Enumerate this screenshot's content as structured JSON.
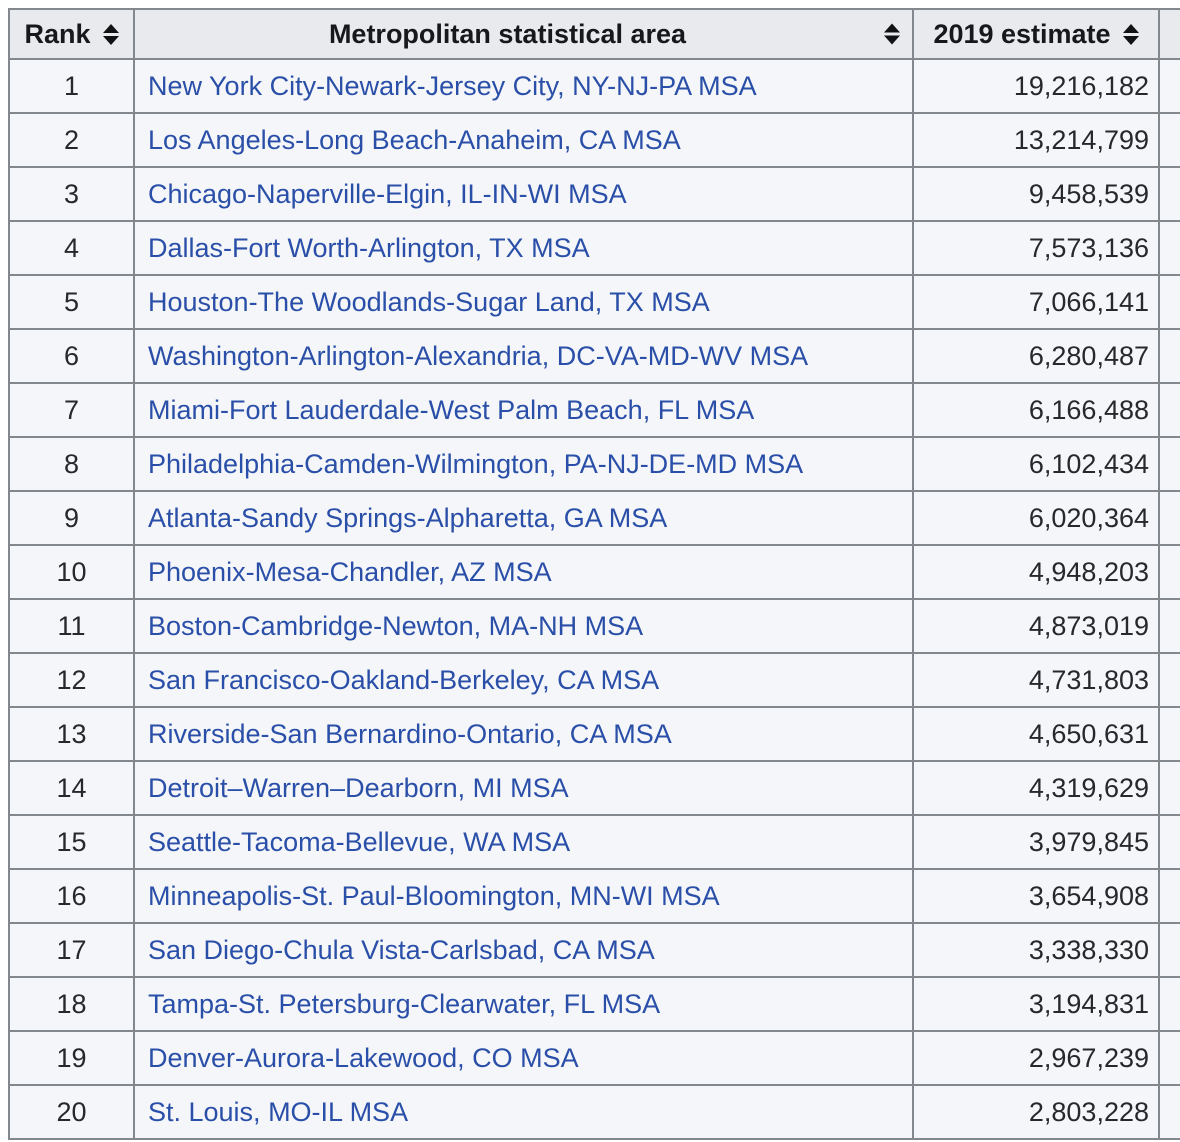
{
  "colors": {
    "header_background": "#e8eaee",
    "row_background": "#f5f6f9",
    "border": "#83888f",
    "link_blue": "#2a4fa8",
    "text": "#1d1f23",
    "page_background": "#ffffff"
  },
  "table": {
    "columns": [
      {
        "label": "Rank"
      },
      {
        "label": "Metropolitan statistical area"
      },
      {
        "label": "2019 estimate"
      }
    ],
    "rows": [
      {
        "rank": "1",
        "area": "New York City-Newark-Jersey City, NY-NJ-PA MSA",
        "estimate": "19,216,182"
      },
      {
        "rank": "2",
        "area": "Los Angeles-Long Beach-Anaheim, CA MSA",
        "estimate": "13,214,799"
      },
      {
        "rank": "3",
        "area": "Chicago-Naperville-Elgin, IL-IN-WI MSA",
        "estimate": "9,458,539"
      },
      {
        "rank": "4",
        "area": "Dallas-Fort Worth-Arlington, TX MSA",
        "estimate": "7,573,136"
      },
      {
        "rank": "5",
        "area": "Houston-The Woodlands-Sugar Land, TX MSA",
        "estimate": "7,066,141"
      },
      {
        "rank": "6",
        "area": "Washington-Arlington-Alexandria, DC-VA-MD-WV MSA",
        "estimate": "6,280,487"
      },
      {
        "rank": "7",
        "area": "Miami-Fort Lauderdale-West Palm Beach, FL MSA",
        "estimate": "6,166,488"
      },
      {
        "rank": "8",
        "area": "Philadelphia-Camden-Wilmington, PA-NJ-DE-MD MSA",
        "estimate": "6,102,434"
      },
      {
        "rank": "9",
        "area": "Atlanta-Sandy Springs-Alpharetta, GA MSA",
        "estimate": "6,020,364"
      },
      {
        "rank": "10",
        "area": "Phoenix-Mesa-Chandler, AZ MSA",
        "estimate": "4,948,203"
      },
      {
        "rank": "11",
        "area": "Boston-Cambridge-Newton, MA-NH MSA",
        "estimate": "4,873,019"
      },
      {
        "rank": "12",
        "area": "San Francisco-Oakland-Berkeley, CA MSA",
        "estimate": "4,731,803"
      },
      {
        "rank": "13",
        "area": "Riverside-San Bernardino-Ontario, CA MSA",
        "estimate": "4,650,631"
      },
      {
        "rank": "14",
        "area": "Detroit–Warren–Dearborn, MI MSA",
        "estimate": "4,319,629"
      },
      {
        "rank": "15",
        "area": "Seattle-Tacoma-Bellevue, WA MSA",
        "estimate": "3,979,845"
      },
      {
        "rank": "16",
        "area": "Minneapolis-St. Paul-Bloomington, MN-WI MSA",
        "estimate": "3,654,908"
      },
      {
        "rank": "17",
        "area": "San Diego-Chula Vista-Carlsbad, CA MSA",
        "estimate": "3,338,330"
      },
      {
        "rank": "18",
        "area": "Tampa-St. Petersburg-Clearwater, FL MSA",
        "estimate": "3,194,831"
      },
      {
        "rank": "19",
        "area": "Denver-Aurora-Lakewood, CO MSA",
        "estimate": "2,967,239"
      },
      {
        "rank": "20",
        "area": "St. Louis, MO-IL MSA",
        "estimate": "2,803,228"
      }
    ]
  }
}
